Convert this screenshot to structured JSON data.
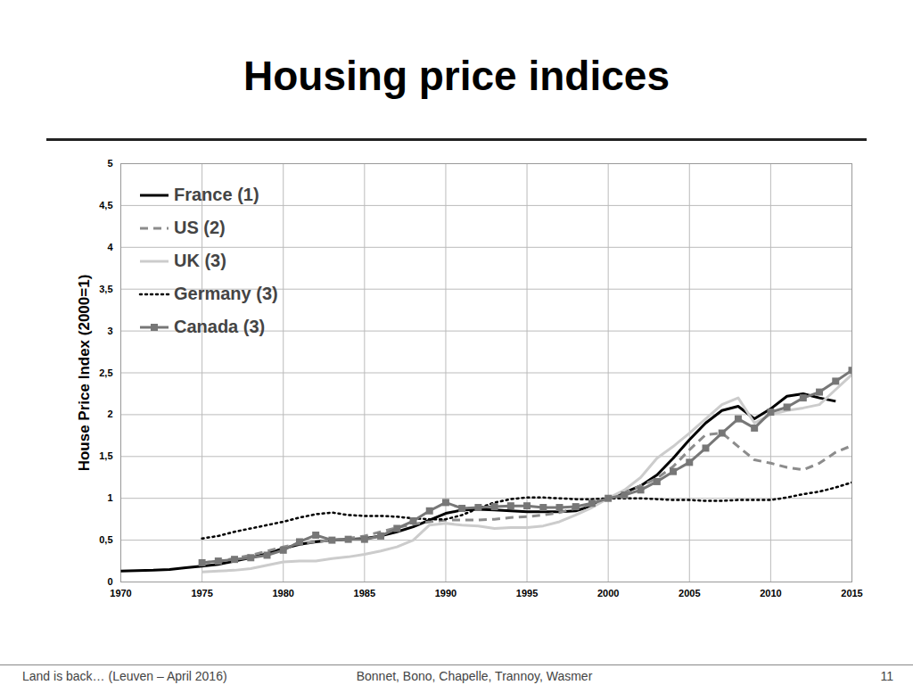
{
  "chart_data": {
    "type": "line",
    "title": "Housing price indices",
    "y_label": "House Price Index (2000=1)",
    "x": [
      1970,
      1971,
      1972,
      1973,
      1974,
      1975,
      1976,
      1977,
      1978,
      1979,
      1980,
      1981,
      1982,
      1983,
      1984,
      1985,
      1986,
      1987,
      1988,
      1989,
      1990,
      1991,
      1992,
      1993,
      1994,
      1995,
      1996,
      1997,
      1998,
      1999,
      2000,
      2001,
      2002,
      2003,
      2004,
      2005,
      2006,
      2007,
      2008,
      2009,
      2010,
      2011,
      2012,
      2013,
      2014,
      2015
    ],
    "xlim": [
      1970,
      2015
    ],
    "xticks": [
      1970,
      1975,
      1980,
      1985,
      1990,
      1995,
      2000,
      2005,
      2010,
      2015
    ],
    "ylim": [
      0,
      5
    ],
    "yticks": [
      0,
      {
        "value": 0.5,
        "label": "0,5"
      },
      1,
      {
        "value": 1.5,
        "label": "1,5"
      },
      2,
      {
        "value": 2.5,
        "label": "2,5"
      },
      3,
      {
        "value": 3.5,
        "label": "3,5"
      },
      4,
      {
        "value": 4.5,
        "label": "4,5"
      },
      5
    ],
    "grid": true,
    "legend": "top-left",
    "series": [
      {
        "name": "France (1)",
        "color": "#000000",
        "line_style": "solid",
        "values": [
          0.13,
          0.135,
          0.14,
          0.15,
          0.17,
          0.19,
          0.21,
          0.25,
          0.29,
          0.34,
          0.4,
          0.45,
          0.48,
          0.5,
          0.51,
          0.52,
          0.55,
          0.6,
          0.66,
          0.74,
          0.82,
          0.86,
          0.87,
          0.86,
          0.85,
          0.84,
          0.84,
          0.84,
          0.85,
          0.91,
          1.0,
          1.07,
          1.15,
          1.28,
          1.48,
          1.7,
          1.9,
          2.05,
          2.1,
          1.95,
          2.07,
          2.22,
          2.25,
          2.2,
          2.16,
          null
        ]
      },
      {
        "name": "US (2)",
        "color": "#8c8c8c",
        "line_style": "dashed",
        "values": [
          null,
          null,
          null,
          null,
          null,
          0.23,
          0.25,
          0.28,
          0.32,
          0.37,
          0.42,
          0.46,
          0.48,
          0.5,
          0.52,
          0.55,
          0.6,
          0.65,
          0.69,
          0.72,
          0.74,
          0.74,
          0.74,
          0.75,
          0.77,
          0.78,
          0.8,
          0.83,
          0.88,
          0.93,
          1.0,
          1.07,
          1.15,
          1.24,
          1.38,
          1.58,
          1.76,
          1.78,
          1.62,
          1.46,
          1.42,
          1.37,
          1.34,
          1.42,
          1.55,
          1.63
        ]
      },
      {
        "name": "UK (3)",
        "color": "#cccccc",
        "line_style": "solid",
        "values": [
          null,
          null,
          null,
          null,
          null,
          0.12,
          0.13,
          0.14,
          0.16,
          0.2,
          0.24,
          0.25,
          0.25,
          0.28,
          0.3,
          0.33,
          0.37,
          0.42,
          0.5,
          0.68,
          0.7,
          0.68,
          0.67,
          0.64,
          0.65,
          0.65,
          0.67,
          0.72,
          0.8,
          0.89,
          1.0,
          1.1,
          1.25,
          1.48,
          1.62,
          1.78,
          1.95,
          2.12,
          2.2,
          1.9,
          2.0,
          2.05,
          2.08,
          2.12,
          2.3,
          2.48
        ]
      },
      {
        "name": "Germany (3)",
        "color": "#000000",
        "line_style": "dotted",
        "values": [
          null,
          null,
          null,
          null,
          null,
          0.52,
          0.55,
          0.6,
          0.64,
          0.68,
          0.72,
          0.77,
          0.81,
          0.83,
          0.8,
          0.79,
          0.79,
          0.78,
          0.76,
          0.75,
          0.75,
          0.8,
          0.88,
          0.95,
          0.99,
          1.01,
          1.01,
          1.0,
          0.99,
          0.99,
          1.0,
          1.0,
          1.0,
          0.99,
          0.98,
          0.98,
          0.97,
          0.97,
          0.98,
          0.98,
          0.98,
          1.01,
          1.05,
          1.08,
          1.13,
          1.19
        ]
      },
      {
        "name": "Canada (3)",
        "color": "#777777",
        "line_style": "solid",
        "marker": "square",
        "values": [
          null,
          null,
          null,
          null,
          null,
          0.23,
          0.25,
          0.27,
          0.29,
          0.32,
          0.38,
          0.48,
          0.56,
          0.5,
          0.51,
          0.51,
          0.55,
          0.64,
          0.73,
          0.85,
          0.95,
          0.88,
          0.89,
          0.9,
          0.91,
          0.91,
          0.89,
          0.89,
          0.9,
          0.94,
          1.0,
          1.04,
          1.1,
          1.2,
          1.32,
          1.43,
          1.6,
          1.78,
          1.95,
          1.84,
          2.03,
          2.09,
          2.2,
          2.27,
          2.4,
          2.53
        ]
      }
    ]
  },
  "footer": {
    "left": "Land is back… (Leuven – April 2016)",
    "center": "Bonnet, Bono, Chapelle, Trannoy, Wasmer",
    "right": "11"
  }
}
